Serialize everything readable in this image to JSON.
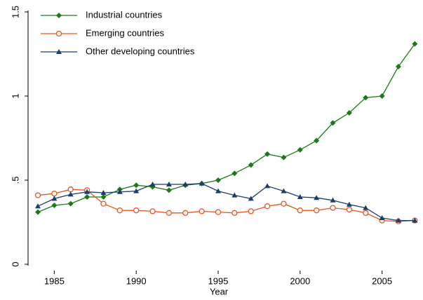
{
  "chart_data": {
    "type": "line",
    "x_label": "Year",
    "x": [
      1984,
      1985,
      1986,
      1987,
      1988,
      1989,
      1990,
      1991,
      1992,
      1993,
      1994,
      1995,
      1996,
      1997,
      1998,
      1999,
      2000,
      2001,
      2002,
      2003,
      2004,
      2005,
      2006,
      2007
    ],
    "series": [
      {
        "name": "Industrial countries",
        "color": "#1a7a1a",
        "marker": "diamond",
        "values": [
          0.31,
          0.35,
          0.36,
          0.4,
          0.4,
          0.445,
          0.47,
          0.46,
          0.44,
          0.47,
          0.48,
          0.5,
          0.54,
          0.59,
          0.655,
          0.635,
          0.68,
          0.735,
          0.84,
          0.9,
          0.99,
          1.0,
          1.175,
          1.31
        ]
      },
      {
        "name": "Emerging countries",
        "color": "#e8541e",
        "marker": "circle",
        "values": [
          0.41,
          0.42,
          0.445,
          0.44,
          0.36,
          0.32,
          0.32,
          0.315,
          0.305,
          0.305,
          0.315,
          0.31,
          0.305,
          0.315,
          0.345,
          0.36,
          0.32,
          0.32,
          0.335,
          0.325,
          0.305,
          0.26,
          0.255,
          0.26
        ]
      },
      {
        "name": "Other developing countries",
        "color": "#1a3d6b",
        "marker": "triangle",
        "values": [
          0.345,
          0.39,
          0.415,
          0.43,
          0.425,
          0.43,
          0.435,
          0.475,
          0.475,
          0.475,
          0.48,
          0.435,
          0.41,
          0.39,
          0.465,
          0.435,
          0.4,
          0.395,
          0.38,
          0.355,
          0.335,
          0.275,
          0.26,
          0.26
        ]
      }
    ],
    "xlim": [
      1983.4,
      2007.5
    ],
    "xticks": [
      1985,
      1990,
      1995,
      2000,
      2005
    ],
    "ylim": [
      0,
      1.5
    ],
    "yticks": [
      0,
      {
        "value": 0.5,
        "label": ".5"
      },
      1,
      1.5
    ],
    "legend": "top-left"
  }
}
